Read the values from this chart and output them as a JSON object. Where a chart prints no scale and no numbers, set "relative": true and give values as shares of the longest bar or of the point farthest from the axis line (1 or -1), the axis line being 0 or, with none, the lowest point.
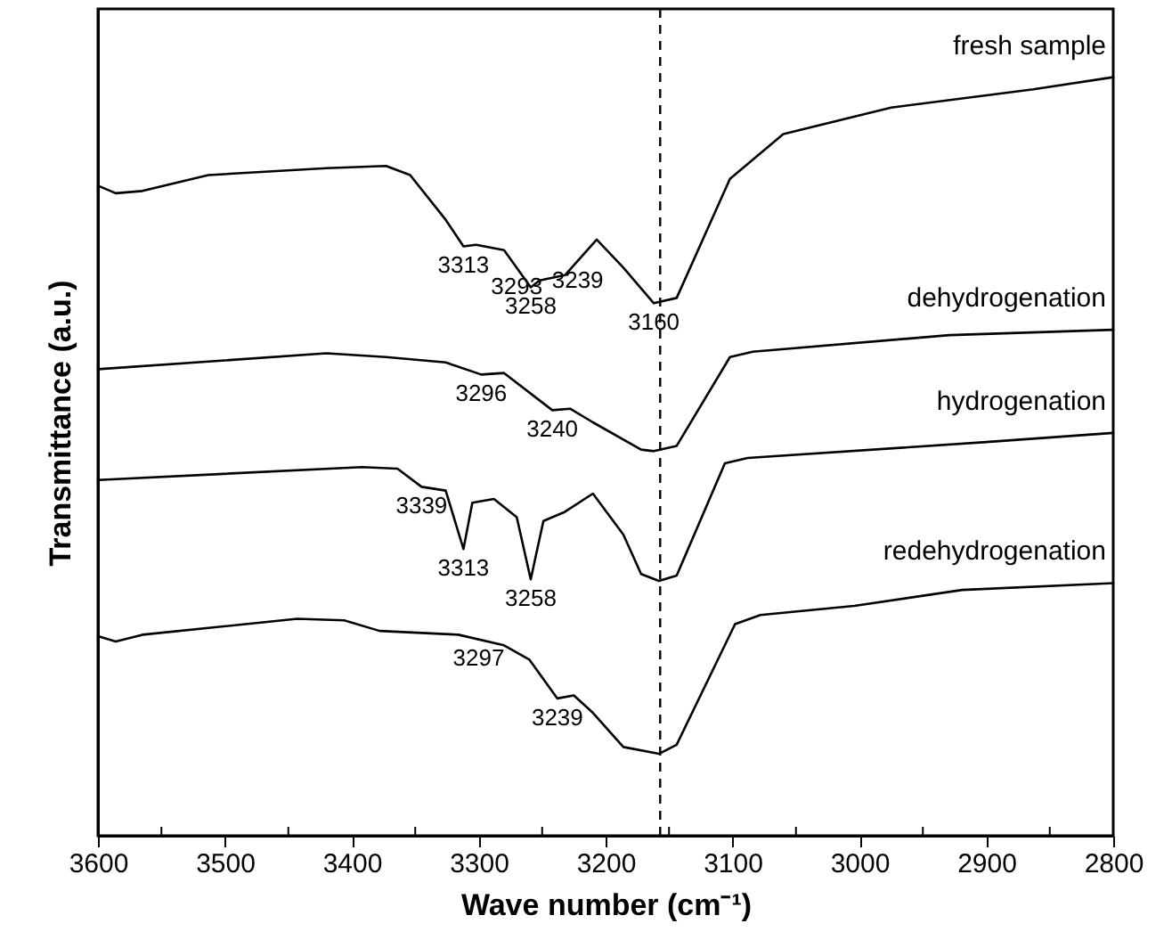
{
  "chart_data": {
    "type": "line",
    "relative": true,
    "xlabel": "Wave number (cm⁻¹)",
    "ylabel": "Transmittance (a.u.)",
    "xlim": [
      3600,
      2800
    ],
    "xticks": [
      3600,
      {
        "value": 3550,
        "label": null
      },
      3500,
      {
        "value": 3450,
        "label": null
      },
      3400,
      {
        "value": 3350,
        "label": null
      },
      3300,
      {
        "value": 3250,
        "label": null
      },
      3200,
      {
        "value": 3150,
        "label": null
      },
      3100,
      {
        "value": 3050,
        "label": null
      },
      3000,
      {
        "value": 2950,
        "label": null
      },
      2900,
      {
        "value": 2850,
        "label": null
      },
      2800
    ],
    "tick_labels": "x",
    "grid": false,
    "legend": false,
    "line_style": "solid",
    "marker": "none",
    "series": [
      {
        "name": "fresh sample",
        "color": "#000000",
        "x": [
          3600,
          3586,
          3565,
          3513,
          3420,
          3373,
          3354,
          3326,
          3312,
          3302,
          3280,
          3259,
          3252,
          3232,
          3207,
          3186,
          3162,
          3144,
          3102,
          3060,
          2975,
          2863,
          2800
        ],
        "values": [
          0.857,
          0.847,
          0.85,
          0.871,
          0.88,
          0.883,
          0.871,
          0.812,
          0.777,
          0.779,
          0.772,
          0.723,
          0.732,
          0.739,
          0.786,
          0.749,
          0.702,
          0.709,
          0.866,
          0.925,
          0.96,
          0.984,
          1.0
        ]
      },
      {
        "name": "dehydrogenation",
        "color": "#000000",
        "x": [
          3600,
          3420,
          3373,
          3326,
          3298,
          3280,
          3242,
          3228,
          3210,
          3172,
          3162,
          3144,
          3102,
          3084,
          2929,
          2800
        ],
        "values": [
          0.615,
          0.636,
          0.631,
          0.624,
          0.608,
          0.61,
          0.561,
          0.563,
          0.545,
          0.509,
          0.507,
          0.514,
          0.631,
          0.638,
          0.66,
          0.667
        ]
      },
      {
        "name": "hydrogenation",
        "color": "#000000",
        "x": [
          3600,
          3392,
          3364,
          3345,
          3326,
          3312,
          3305,
          3288,
          3270,
          3259,
          3249,
          3232,
          3210,
          3186,
          3172,
          3158,
          3144,
          3106,
          3088,
          2900,
          2800
        ],
        "values": [
          0.469,
          0.486,
          0.484,
          0.46,
          0.455,
          0.378,
          0.439,
          0.444,
          0.42,
          0.338,
          0.415,
          0.427,
          0.451,
          0.397,
          0.345,
          0.336,
          0.343,
          0.491,
          0.498,
          0.519,
          0.531
        ]
      },
      {
        "name": "redehydrogenation",
        "color": "#000000",
        "x": [
          3600,
          3586,
          3565,
          3443,
          3406,
          3378,
          3316,
          3280,
          3260,
          3238,
          3225,
          3210,
          3186,
          3158,
          3144,
          3098,
          3078,
          3004,
          2919,
          2800
        ],
        "values": [
          0.263,
          0.256,
          0.265,
          0.286,
          0.284,
          0.27,
          0.265,
          0.251,
          0.232,
          0.181,
          0.185,
          0.162,
          0.117,
          0.108,
          0.12,
          0.279,
          0.291,
          0.303,
          0.324,
          0.333
        ]
      }
    ],
    "ref_lines": [
      {
        "axis": "x",
        "value": 3157,
        "color": "#000000",
        "line_style": "dashed"
      }
    ],
    "annotations": [
      {
        "text": "3313",
        "x": 3312,
        "y": 0.777
      },
      {
        "text": "3293",
        "x": 3270,
        "y": 0.749
      },
      {
        "text": "3258",
        "x": 3259,
        "y": 0.723
      },
      {
        "text": "3239",
        "x": 3222,
        "y": 0.758
      },
      {
        "text": "3160",
        "x": 3162,
        "y": 0.702
      },
      {
        "text": "3296",
        "x": 3298,
        "y": 0.608
      },
      {
        "text": "3240",
        "x": 3242,
        "y": 0.561
      },
      {
        "text": "3339",
        "x": 3345,
        "y": 0.46
      },
      {
        "text": "3313",
        "x": 3312,
        "y": 0.378
      },
      {
        "text": "3258",
        "x": 3259,
        "y": 0.338
      },
      {
        "text": "3297",
        "x": 3300,
        "y": 0.259
      },
      {
        "text": "3239",
        "x": 3238,
        "y": 0.181
      }
    ]
  }
}
